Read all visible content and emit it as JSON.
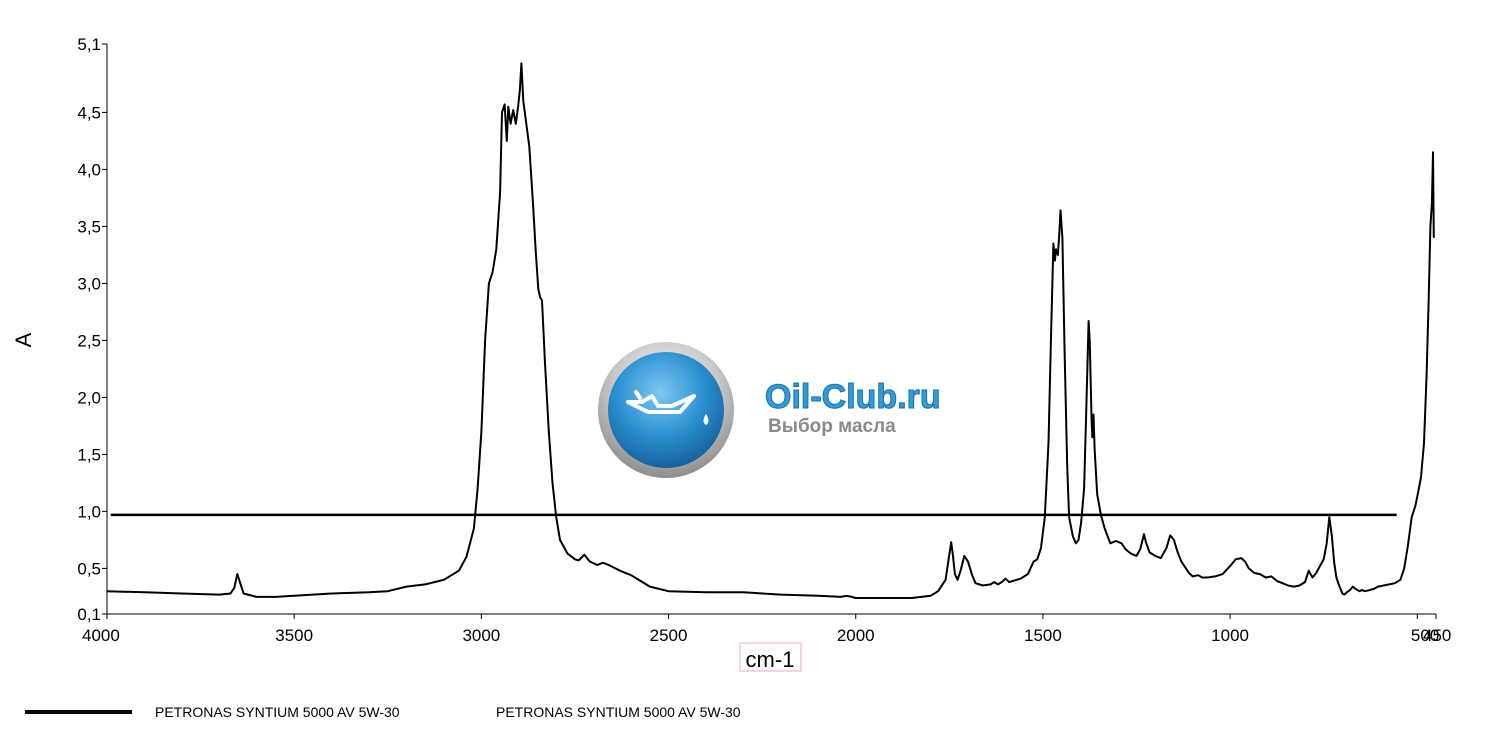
{
  "chart_data": {
    "type": "line",
    "title": "",
    "xlabel": "cm-1",
    "ylabel": "A",
    "xlim": [
      4000,
      450
    ],
    "ylim": [
      0.1,
      5.1
    ],
    "x_ticks": [
      4000,
      3500,
      3000,
      2500,
      2000,
      1500,
      1000,
      500,
      450
    ],
    "x_tick_labels": [
      "4000",
      "3500",
      "3000",
      "2500",
      "2000",
      "1500",
      "1000",
      "500",
      "450"
    ],
    "y_ticks": [
      0.1,
      0.5,
      1.0,
      1.5,
      2.0,
      2.5,
      3.0,
      3.5,
      4.0,
      4.5,
      5.1
    ],
    "y_tick_labels": [
      "0,1",
      "0,5",
      "1,0",
      "1,5",
      "2,0",
      "2,5",
      "3,0",
      "3,5",
      "4,0",
      "4,5",
      "5,1"
    ],
    "grid": false,
    "legend_position": "bottom-left",
    "reference_line": {
      "y": 0.97,
      "x_from": 3990,
      "x_to": 555
    },
    "series": [
      {
        "name": "PETRONAS SYNTIUM 5000 AV 5W-30",
        "color": "#000000",
        "points": [
          [
            4000,
            0.3
          ],
          [
            3900,
            0.29
          ],
          [
            3800,
            0.28
          ],
          [
            3700,
            0.27
          ],
          [
            3670,
            0.28
          ],
          [
            3660,
            0.33
          ],
          [
            3652,
            0.45
          ],
          [
            3645,
            0.38
          ],
          [
            3635,
            0.28
          ],
          [
            3600,
            0.25
          ],
          [
            3550,
            0.25
          ],
          [
            3500,
            0.26
          ],
          [
            3400,
            0.28
          ],
          [
            3300,
            0.29
          ],
          [
            3250,
            0.3
          ],
          [
            3200,
            0.34
          ],
          [
            3150,
            0.36
          ],
          [
            3100,
            0.4
          ],
          [
            3060,
            0.48
          ],
          [
            3040,
            0.6
          ],
          [
            3020,
            0.85
          ],
          [
            3010,
            1.2
          ],
          [
            3000,
            1.7
          ],
          [
            2990,
            2.5
          ],
          [
            2980,
            3.0
          ],
          [
            2970,
            3.1
          ],
          [
            2960,
            3.3
          ],
          [
            2950,
            3.8
          ],
          [
            2945,
            4.5
          ],
          [
            2938,
            4.57
          ],
          [
            2932,
            4.25
          ],
          [
            2928,
            4.55
          ],
          [
            2922,
            4.4
          ],
          [
            2915,
            4.52
          ],
          [
            2908,
            4.4
          ],
          [
            2902,
            4.55
          ],
          [
            2897,
            4.7
          ],
          [
            2893,
            4.93
          ],
          [
            2888,
            4.6
          ],
          [
            2880,
            4.4
          ],
          [
            2872,
            4.2
          ],
          [
            2862,
            3.7
          ],
          [
            2855,
            3.3
          ],
          [
            2848,
            2.95
          ],
          [
            2843,
            2.88
          ],
          [
            2838,
            2.85
          ],
          [
            2830,
            2.3
          ],
          [
            2820,
            1.7
          ],
          [
            2810,
            1.25
          ],
          [
            2800,
            0.95
          ],
          [
            2790,
            0.75
          ],
          [
            2770,
            0.63
          ],
          [
            2750,
            0.58
          ],
          [
            2740,
            0.57
          ],
          [
            2725,
            0.62
          ],
          [
            2710,
            0.56
          ],
          [
            2690,
            0.53
          ],
          [
            2675,
            0.55
          ],
          [
            2660,
            0.53
          ],
          [
            2630,
            0.48
          ],
          [
            2600,
            0.44
          ],
          [
            2550,
            0.34
          ],
          [
            2500,
            0.3
          ],
          [
            2400,
            0.29
          ],
          [
            2300,
            0.29
          ],
          [
            2200,
            0.27
          ],
          [
            2100,
            0.26
          ],
          [
            2040,
            0.25
          ],
          [
            2025,
            0.26
          ],
          [
            2010,
            0.25
          ],
          [
            2000,
            0.24
          ],
          [
            1900,
            0.24
          ],
          [
            1850,
            0.24
          ],
          [
            1800,
            0.26
          ],
          [
            1780,
            0.3
          ],
          [
            1760,
            0.4
          ],
          [
            1750,
            0.62
          ],
          [
            1745,
            0.73
          ],
          [
            1740,
            0.6
          ],
          [
            1735,
            0.45
          ],
          [
            1728,
            0.4
          ],
          [
            1720,
            0.48
          ],
          [
            1710,
            0.61
          ],
          [
            1700,
            0.56
          ],
          [
            1690,
            0.45
          ],
          [
            1680,
            0.37
          ],
          [
            1660,
            0.35
          ],
          [
            1640,
            0.36
          ],
          [
            1630,
            0.38
          ],
          [
            1620,
            0.36
          ],
          [
            1610,
            0.38
          ],
          [
            1600,
            0.41
          ],
          [
            1590,
            0.38
          ],
          [
            1580,
            0.39
          ],
          [
            1560,
            0.41
          ],
          [
            1540,
            0.45
          ],
          [
            1525,
            0.56
          ],
          [
            1515,
            0.58
          ],
          [
            1505,
            0.68
          ],
          [
            1495,
            0.95
          ],
          [
            1485,
            1.6
          ],
          [
            1478,
            2.6
          ],
          [
            1472,
            3.35
          ],
          [
            1468,
            3.2
          ],
          [
            1465,
            3.3
          ],
          [
            1460,
            3.25
          ],
          [
            1456,
            3.45
          ],
          [
            1453,
            3.64
          ],
          [
            1448,
            3.4
          ],
          [
            1442,
            2.4
          ],
          [
            1435,
            1.4
          ],
          [
            1430,
            0.95
          ],
          [
            1420,
            0.78
          ],
          [
            1412,
            0.72
          ],
          [
            1405,
            0.75
          ],
          [
            1398,
            0.9
          ],
          [
            1390,
            1.2
          ],
          [
            1385,
            1.8
          ],
          [
            1380,
            2.4
          ],
          [
            1378,
            2.67
          ],
          [
            1375,
            2.5
          ],
          [
            1370,
            1.8
          ],
          [
            1368,
            1.65
          ],
          [
            1365,
            1.85
          ],
          [
            1362,
            1.55
          ],
          [
            1355,
            1.15
          ],
          [
            1345,
            0.97
          ],
          [
            1335,
            0.85
          ],
          [
            1320,
            0.72
          ],
          [
            1305,
            0.74
          ],
          [
            1290,
            0.72
          ],
          [
            1280,
            0.67
          ],
          [
            1265,
            0.63
          ],
          [
            1250,
            0.61
          ],
          [
            1240,
            0.67
          ],
          [
            1230,
            0.8
          ],
          [
            1225,
            0.73
          ],
          [
            1215,
            0.64
          ],
          [
            1200,
            0.61
          ],
          [
            1185,
            0.59
          ],
          [
            1170,
            0.68
          ],
          [
            1160,
            0.79
          ],
          [
            1150,
            0.75
          ],
          [
            1140,
            0.64
          ],
          [
            1130,
            0.56
          ],
          [
            1120,
            0.51
          ],
          [
            1110,
            0.46
          ],
          [
            1100,
            0.43
          ],
          [
            1085,
            0.44
          ],
          [
            1075,
            0.42
          ],
          [
            1060,
            0.42
          ],
          [
            1040,
            0.43
          ],
          [
            1020,
            0.45
          ],
          [
            1000,
            0.52
          ],
          [
            985,
            0.58
          ],
          [
            970,
            0.59
          ],
          [
            960,
            0.56
          ],
          [
            950,
            0.5
          ],
          [
            935,
            0.46
          ],
          [
            920,
            0.45
          ],
          [
            905,
            0.42
          ],
          [
            890,
            0.43
          ],
          [
            875,
            0.39
          ],
          [
            860,
            0.37
          ],
          [
            845,
            0.35
          ],
          [
            830,
            0.34
          ],
          [
            815,
            0.35
          ],
          [
            800,
            0.38
          ],
          [
            790,
            0.48
          ],
          [
            780,
            0.42
          ],
          [
            770,
            0.46
          ],
          [
            760,
            0.52
          ],
          [
            750,
            0.58
          ],
          [
            742,
            0.72
          ],
          [
            735,
            0.95
          ],
          [
            728,
            0.78
          ],
          [
            722,
            0.55
          ],
          [
            716,
            0.42
          ],
          [
            710,
            0.36
          ],
          [
            705,
            0.32
          ],
          [
            700,
            0.28
          ],
          [
            695,
            0.27
          ],
          [
            688,
            0.29
          ],
          [
            680,
            0.31
          ],
          [
            672,
            0.34
          ],
          [
            665,
            0.32
          ],
          [
            655,
            0.3
          ],
          [
            648,
            0.31
          ],
          [
            640,
            0.3
          ],
          [
            628,
            0.31
          ],
          [
            616,
            0.32
          ],
          [
            605,
            0.34
          ],
          [
            590,
            0.35
          ],
          [
            575,
            0.36
          ],
          [
            560,
            0.37
          ],
          [
            545,
            0.4
          ],
          [
            535,
            0.5
          ],
          [
            525,
            0.7
          ],
          [
            515,
            0.95
          ],
          [
            505,
            1.05
          ],
          [
            497,
            1.18
          ],
          [
            490,
            1.3
          ],
          [
            482,
            1.6
          ],
          [
            475,
            2.2
          ],
          [
            470,
            2.8
          ],
          [
            465,
            3.5
          ],
          [
            461,
            3.7
          ],
          [
            458,
            4.15
          ],
          [
            456,
            3.4
          ]
        ]
      }
    ]
  },
  "legend": {
    "entries": [
      "PETRONAS SYNTIUM 5000 AV 5W-30",
      "PETRONAS SYNTIUM 5000 AV 5W-30"
    ]
  },
  "watermark": {
    "title": "Oil-Club.ru",
    "subtitle": "Выбор масла",
    "title_color": "#2f9bd8",
    "subtitle_color": "#8a8a8a"
  }
}
